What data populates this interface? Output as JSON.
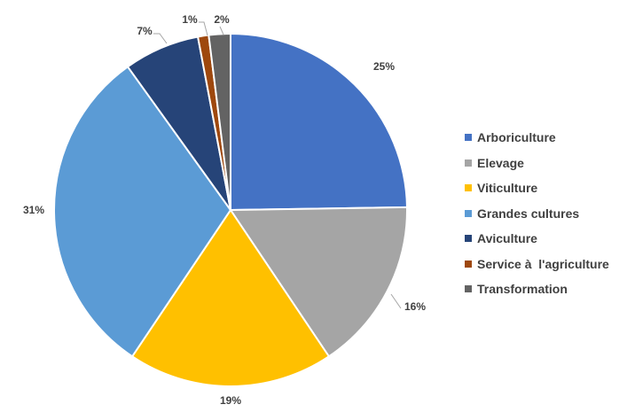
{
  "chart_data": {
    "type": "pie",
    "title": "",
    "legend_position": "right",
    "slices": [
      {
        "label": "Arboriculture",
        "value": 25,
        "value_label": "25%",
        "color": "#4472C4"
      },
      {
        "label": "Elevage",
        "value": 16,
        "value_label": "16%",
        "color": "#A5A5A5"
      },
      {
        "label": "Viticulture",
        "value": 19,
        "value_label": "19%",
        "color": "#FFC000"
      },
      {
        "label": "Grandes cultures",
        "value": 31,
        "value_label": "31%",
        "color": "#5B9BD5"
      },
      {
        "label": "Aviculture",
        "value": 7,
        "value_label": "7%",
        "color": "#264478"
      },
      {
        "label": "Service à  l'agriculture",
        "value": 1,
        "value_label": "1%",
        "color": "#9E480E"
      },
      {
        "label": "Transformation",
        "value": 2,
        "value_label": "2%",
        "color": "#636363"
      }
    ]
  }
}
